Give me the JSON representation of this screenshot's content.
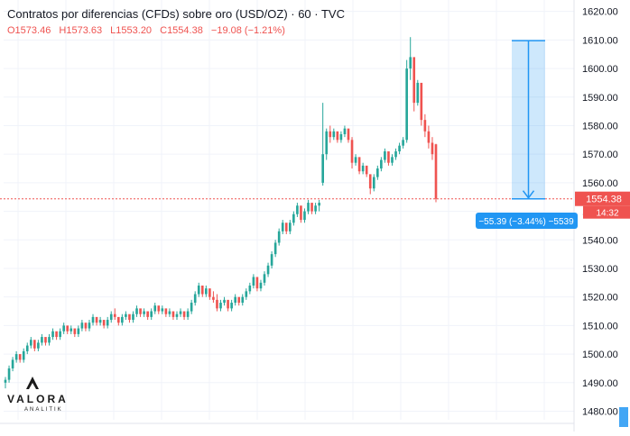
{
  "header": {
    "title": "Contratos por diferencias (CFDs) sobre oro (USD/OZ) · 60 · TVC",
    "ohlc": [
      "O1573.46",
      "H1573.63",
      "L1553.20",
      "C1554.38",
      "−19.08 (−1.21%)"
    ]
  },
  "badges": {
    "last_price": "1554.38",
    "countdown": "14:32",
    "measure": "−55.39 (−3.44%) −5539"
  },
  "logo": {
    "name": "VALORA",
    "sub": "ANALITIK"
  },
  "colors": {
    "up": "#26a69a",
    "down": "#ef5350",
    "measure": "#2196f3",
    "grid": "#f0f3fa"
  },
  "chart_data": {
    "type": "candlestick",
    "y_axis": {
      "ticks": [
        "1620.00",
        "1610.00",
        "1600.00",
        "1590.00",
        "1580.00",
        "1570.00",
        "1560.00",
        "1550.00",
        "1540.00",
        "1530.00",
        "1520.00",
        "1510.00",
        "1500.00",
        "1490.00",
        "1480.00"
      ],
      "range": [
        1477,
        1624
      ],
      "position": "right"
    },
    "last_price": 1554.38,
    "measure": {
      "from": 1609.77,
      "to": 1554.38,
      "change": -55.39,
      "change_pct": -3.44,
      "ticks": -5539
    },
    "candles": [
      [
        1490,
        1492,
        1488,
        1491
      ],
      [
        1491,
        1496,
        1490,
        1495
      ],
      [
        1495,
        1499,
        1494,
        1498
      ],
      [
        1498,
        1501,
        1497,
        1500
      ],
      [
        1500,
        1499,
        1497,
        1498
      ],
      [
        1498,
        1502,
        1497,
        1501
      ],
      [
        1501,
        1504,
        1500,
        1503
      ],
      [
        1503,
        1506,
        1502,
        1505
      ],
      [
        1505,
        1504,
        1501,
        1502
      ],
      [
        1502,
        1505,
        1501,
        1504
      ],
      [
        1504,
        1507,
        1503,
        1506
      ],
      [
        1506,
        1505,
        1503,
        1504
      ],
      [
        1504,
        1507,
        1503,
        1506
      ],
      [
        1506,
        1509,
        1505,
        1508
      ],
      [
        1508,
        1507,
        1505,
        1506
      ],
      [
        1506,
        1509,
        1505,
        1508
      ],
      [
        1508,
        1511,
        1507,
        1510
      ],
      [
        1510,
        1509,
        1507,
        1508
      ],
      [
        1508,
        1510,
        1507,
        1509
      ],
      [
        1509,
        1508,
        1506,
        1507
      ],
      [
        1507,
        1510,
        1506,
        1509
      ],
      [
        1509,
        1512,
        1508,
        1511
      ],
      [
        1511,
        1510,
        1508,
        1509
      ],
      [
        1509,
        1512,
        1508,
        1511
      ],
      [
        1511,
        1514,
        1510,
        1513
      ],
      [
        1513,
        1512,
        1510,
        1511
      ],
      [
        1511,
        1513,
        1510,
        1512
      ],
      [
        1512,
        1511,
        1509,
        1510
      ],
      [
        1510,
        1513,
        1509,
        1512
      ],
      [
        1512,
        1515,
        1511,
        1514
      ],
      [
        1514,
        1516,
        1512,
        1513
      ],
      [
        1513,
        1512,
        1510,
        1511
      ],
      [
        1511,
        1514,
        1510,
        1513
      ],
      [
        1513,
        1515,
        1512,
        1514
      ],
      [
        1514,
        1513,
        1511,
        1512
      ],
      [
        1512,
        1515,
        1511,
        1514
      ],
      [
        1514,
        1517,
        1513,
        1516
      ],
      [
        1516,
        1515,
        1513,
        1514
      ],
      [
        1514,
        1516,
        1513,
        1515
      ],
      [
        1515,
        1514,
        1512,
        1513
      ],
      [
        1513,
        1516,
        1512,
        1515
      ],
      [
        1515,
        1518,
        1514,
        1517
      ],
      [
        1517,
        1516,
        1514,
        1515
      ],
      [
        1515,
        1517,
        1514,
        1516
      ],
      [
        1516,
        1515,
        1513,
        1514
      ],
      [
        1514,
        1516,
        1513,
        1515
      ],
      [
        1515,
        1514,
        1512,
        1513
      ],
      [
        1513,
        1515,
        1512,
        1514
      ],
      [
        1514,
        1516,
        1513,
        1515
      ],
      [
        1515,
        1514,
        1512,
        1513
      ],
      [
        1513,
        1516,
        1512,
        1515
      ],
      [
        1515,
        1519,
        1514,
        1518
      ],
      [
        1518,
        1522,
        1517,
        1521
      ],
      [
        1521,
        1525,
        1520,
        1524
      ],
      [
        1524,
        1523,
        1520,
        1521
      ],
      [
        1521,
        1524,
        1520,
        1523
      ],
      [
        1523,
        1522,
        1519,
        1520
      ],
      [
        1520,
        1522,
        1518,
        1519
      ],
      [
        1519,
        1521,
        1515,
        1516
      ],
      [
        1516,
        1519,
        1515,
        1518
      ],
      [
        1518,
        1520,
        1517,
        1519
      ],
      [
        1519,
        1518,
        1515,
        1516
      ],
      [
        1516,
        1519,
        1515,
        1518
      ],
      [
        1518,
        1521,
        1517,
        1520
      ],
      [
        1520,
        1519,
        1517,
        1518
      ],
      [
        1518,
        1521,
        1517,
        1520
      ],
      [
        1520,
        1523,
        1519,
        1522
      ],
      [
        1522,
        1525,
        1521,
        1524
      ],
      [
        1524,
        1528,
        1523,
        1527
      ],
      [
        1527,
        1526,
        1522,
        1523
      ],
      [
        1523,
        1526,
        1522,
        1525
      ],
      [
        1525,
        1529,
        1524,
        1528
      ],
      [
        1528,
        1532,
        1527,
        1531
      ],
      [
        1531,
        1536,
        1530,
        1535
      ],
      [
        1535,
        1540,
        1534,
        1539
      ],
      [
        1539,
        1544,
        1538,
        1543
      ],
      [
        1543,
        1547,
        1542,
        1546
      ],
      [
        1546,
        1545,
        1542,
        1543
      ],
      [
        1543,
        1547,
        1542,
        1546
      ],
      [
        1546,
        1550,
        1545,
        1549
      ],
      [
        1549,
        1553,
        1548,
        1552
      ],
      [
        1552,
        1551,
        1546,
        1547
      ],
      [
        1547,
        1551,
        1546,
        1550
      ],
      [
        1550,
        1554,
        1549,
        1553
      ],
      [
        1553,
        1552,
        1549,
        1550
      ],
      [
        1550,
        1553,
        1549,
        1552
      ],
      [
        1552,
        1554,
        1550,
        1553
      ],
      [
        1560,
        1588,
        1559,
        1570
      ],
      [
        1570,
        1579,
        1568,
        1578
      ],
      [
        1578,
        1580,
        1574,
        1576
      ],
      [
        1576,
        1579,
        1575,
        1578
      ],
      [
        1578,
        1577,
        1574,
        1575
      ],
      [
        1575,
        1578,
        1574,
        1577
      ],
      [
        1577,
        1580,
        1576,
        1579
      ],
      [
        1579,
        1578,
        1574,
        1575
      ],
      [
        1575,
        1576,
        1565,
        1567
      ],
      [
        1567,
        1570,
        1566,
        1569
      ],
      [
        1569,
        1568,
        1563,
        1564
      ],
      [
        1564,
        1567,
        1563,
        1566
      ],
      [
        1566,
        1565,
        1562,
        1563
      ],
      [
        1563,
        1562,
        1556,
        1558
      ],
      [
        1558,
        1563,
        1557,
        1562
      ],
      [
        1562,
        1566,
        1561,
        1565
      ],
      [
        1565,
        1569,
        1564,
        1568
      ],
      [
        1568,
        1572,
        1567,
        1571
      ],
      [
        1571,
        1570,
        1566,
        1567
      ],
      [
        1567,
        1570,
        1566,
        1569
      ],
      [
        1569,
        1572,
        1568,
        1571
      ],
      [
        1571,
        1574,
        1570,
        1573
      ],
      [
        1573,
        1576,
        1572,
        1575
      ],
      [
        1575,
        1603,
        1574,
        1600
      ],
      [
        1600,
        1611,
        1596,
        1604
      ],
      [
        1604,
        1603,
        1585,
        1588
      ],
      [
        1588,
        1596,
        1587,
        1595
      ],
      [
        1595,
        1594,
        1580,
        1582
      ],
      [
        1582,
        1584,
        1576,
        1578
      ],
      [
        1578,
        1580,
        1572,
        1574
      ],
      [
        1574,
        1576,
        1568,
        1570
      ],
      [
        1573.46,
        1573.63,
        1553.2,
        1554.38
      ]
    ]
  }
}
